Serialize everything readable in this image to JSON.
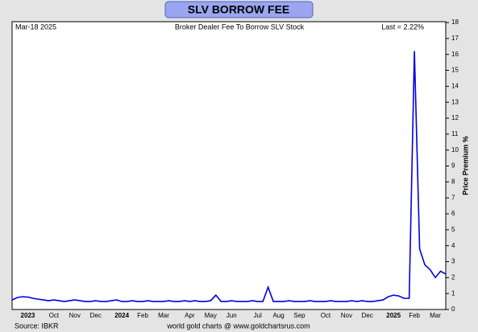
{
  "chart_data": {
    "type": "line",
    "title": "SLV BORROW FEE",
    "subtitle": "Broker Dealer Fee To Borrow SLV Stock",
    "date_label": "Mar-18  2025",
    "last_label": "Last = 2.22%",
    "y_axis_label": "Price Premium %",
    "source": "Source: IBKR",
    "credit": "world gold charts @ www.goldchartsrus.com",
    "categories": [
      null,
      null,
      null,
      "2023",
      null,
      null,
      null,
      null,
      "Oct",
      null,
      null,
      null,
      "Nov",
      null,
      null,
      null,
      "Dec",
      null,
      null,
      null,
      null,
      "2024",
      null,
      null,
      null,
      "Feb",
      null,
      null,
      null,
      "Mar",
      null,
      null,
      null,
      null,
      "Apr",
      null,
      null,
      null,
      "May",
      null,
      null,
      null,
      "Jun",
      null,
      null,
      null,
      null,
      "Jul",
      null,
      null,
      null,
      "Aug",
      null,
      null,
      null,
      "Sep",
      null,
      null,
      null,
      null,
      "Oct",
      null,
      null,
      null,
      "Nov",
      null,
      null,
      null,
      "Dec",
      null,
      null,
      null,
      null,
      "2025",
      null,
      null,
      null,
      "Feb",
      null,
      null,
      null,
      "Mar",
      null,
      null
    ],
    "series": [
      {
        "name": "SLV borrow fee",
        "color": "#0000dd",
        "values": [
          0.6,
          0.75,
          0.8,
          0.78,
          0.7,
          0.65,
          0.6,
          0.55,
          0.6,
          0.55,
          0.5,
          0.55,
          0.6,
          0.55,
          0.5,
          0.5,
          0.55,
          0.5,
          0.5,
          0.55,
          0.6,
          0.5,
          0.5,
          0.55,
          0.5,
          0.5,
          0.55,
          0.5,
          0.5,
          0.5,
          0.55,
          0.5,
          0.5,
          0.55,
          0.5,
          0.55,
          0.5,
          0.5,
          0.55,
          0.9,
          0.5,
          0.5,
          0.55,
          0.5,
          0.5,
          0.5,
          0.55,
          0.5,
          0.5,
          1.4,
          0.5,
          0.5,
          0.5,
          0.55,
          0.5,
          0.5,
          0.5,
          0.55,
          0.5,
          0.5,
          0.5,
          0.55,
          0.5,
          0.5,
          0.5,
          0.55,
          0.5,
          0.55,
          0.5,
          0.5,
          0.55,
          0.6,
          0.8,
          0.9,
          0.85,
          0.7,
          0.7,
          16.2,
          3.8,
          2.8,
          2.5,
          2.0,
          2.4,
          2.22
        ]
      }
    ],
    "ylim": [
      0,
      18
    ],
    "yticks": [
      0,
      1,
      2,
      3,
      4,
      5,
      6,
      7,
      8,
      9,
      10,
      11,
      12,
      13,
      14,
      15,
      16,
      17,
      18
    ],
    "grid": false
  }
}
